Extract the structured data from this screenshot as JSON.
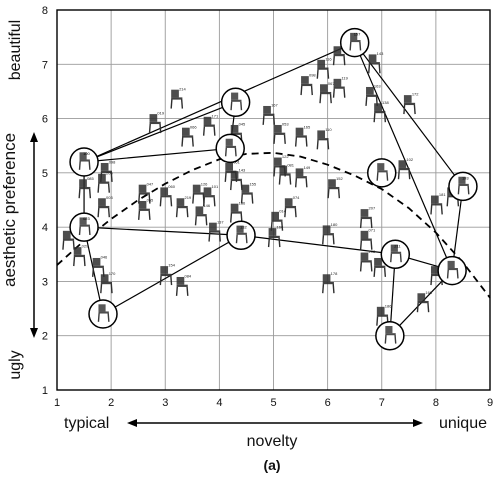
{
  "chart_data": {
    "type": "scatter",
    "title": "",
    "xlabel": "novelty",
    "ylabel": "aesthetic preference",
    "caption": "(a)",
    "x_low_label": "typical",
    "x_high_label": "unique",
    "y_low_label": "ugly",
    "y_high_label": "beautiful",
    "xlim": [
      1,
      9
    ],
    "ylim": [
      1,
      8
    ],
    "xticks": [
      "1",
      "2",
      "3",
      "4",
      "5",
      "6",
      "7",
      "8",
      "9"
    ],
    "yticks": [
      "1",
      "2",
      "3",
      "4",
      "5",
      "6",
      "7",
      "8"
    ],
    "grid": true,
    "legend": "none",
    "colors": {
      "grid": "#9a9a9a",
      "frame": "#000000",
      "hull": "#000000",
      "curve": "#000000",
      "chair": "#2e2e2e",
      "highlight": "#ffffff"
    },
    "highlighted_points": [
      {
        "id": "100",
        "x": 1.5,
        "y": 5.2
      },
      {
        "id": "023",
        "x": 1.5,
        "y": 4.0
      },
      {
        "id": "",
        "x": 1.85,
        "y": 2.4
      },
      {
        "id": "",
        "x": 4.3,
        "y": 6.3
      },
      {
        "id": "",
        "x": 4.2,
        "y": 5.45
      },
      {
        "id": "132",
        "x": 4.4,
        "y": 3.85
      },
      {
        "id": "157",
        "x": 6.5,
        "y": 7.4
      },
      {
        "id": "",
        "x": 7.0,
        "y": 5.0
      },
      {
        "id": "193",
        "x": 8.5,
        "y": 4.75
      },
      {
        "id": "211",
        "x": 7.25,
        "y": 3.5
      },
      {
        "id": "",
        "x": 8.3,
        "y": 3.2
      },
      {
        "id": "",
        "x": 7.15,
        "y": 2.0
      }
    ],
    "outer_hull_order": [
      "100",
      "",
      "157",
      "193",
      "",
      "",
      "",
      "023"
    ],
    "connections": [
      [
        "100",
        "157"
      ],
      [
        "157",
        "193"
      ],
      [
        "193",
        "_8.3"
      ],
      [
        "_8.3",
        "_7.15"
      ],
      [
        "_7.15",
        "211"
      ],
      [
        "211",
        "132"
      ],
      [
        "132",
        "_1.85"
      ],
      [
        "_1.85",
        "023"
      ],
      [
        "023",
        "100"
      ],
      [
        "100",
        "_4.3"
      ],
      [
        "_4.3",
        "_4.2"
      ],
      [
        "_4.2",
        "100"
      ],
      [
        "_4.2",
        "_7.0"
      ],
      [
        "_7.0",
        "193"
      ],
      [
        "_7.0",
        "_8.3"
      ],
      [
        "023",
        "132"
      ],
      [
        "211",
        "_8.3"
      ],
      [
        "157",
        "_8.3"
      ]
    ],
    "fit_curve": {
      "style": "dashed",
      "points": [
        [
          1.0,
          3.3
        ],
        [
          1.5,
          3.75
        ],
        [
          2.0,
          4.15
        ],
        [
          2.5,
          4.5
        ],
        [
          3.0,
          4.8
        ],
        [
          3.5,
          5.05
        ],
        [
          4.0,
          5.25
        ],
        [
          4.5,
          5.35
        ],
        [
          5.0,
          5.37
        ],
        [
          5.5,
          5.3
        ],
        [
          6.0,
          5.15
        ],
        [
          6.5,
          4.95
        ],
        [
          7.0,
          4.7
        ],
        [
          7.5,
          4.35
        ],
        [
          8.0,
          3.9
        ],
        [
          8.5,
          3.35
        ],
        [
          9.0,
          2.7
        ]
      ]
    },
    "points": [
      {
        "id": "108",
        "x": 6.2,
        "y": 7.1
      },
      {
        "id": "116",
        "x": 5.9,
        "y": 6.85
      },
      {
        "id": "143",
        "x": 6.85,
        "y": 6.95
      },
      {
        "id": "098",
        "x": 5.6,
        "y": 6.55
      },
      {
        "id": "067",
        "x": 5.95,
        "y": 6.4
      },
      {
        "id": "119",
        "x": 6.2,
        "y": 6.5
      },
      {
        "id": "214",
        "x": 3.2,
        "y": 6.3
      },
      {
        "id": "163",
        "x": 6.8,
        "y": 6.35
      },
      {
        "id": "172",
        "x": 7.5,
        "y": 6.2
      },
      {
        "id": "167",
        "x": 4.9,
        "y": 6.0
      },
      {
        "id": "138",
        "x": 6.95,
        "y": 6.05
      },
      {
        "id": "019",
        "x": 2.8,
        "y": 5.85
      },
      {
        "id": "171",
        "x": 3.8,
        "y": 5.8
      },
      {
        "id": "045",
        "x": 4.3,
        "y": 5.65
      },
      {
        "id": "053",
        "x": 5.1,
        "y": 5.65
      },
      {
        "id": "066",
        "x": 3.4,
        "y": 5.6
      },
      {
        "id": "165",
        "x": 5.5,
        "y": 5.6
      },
      {
        "id": "110",
        "x": 5.9,
        "y": 5.55
      },
      {
        "id": "098b",
        "x": 1.9,
        "y": 4.95
      },
      {
        "id": "205",
        "x": 1.85,
        "y": 4.75
      },
      {
        "id": "085",
        "x": 1.5,
        "y": 4.65
      },
      {
        "id": "122",
        "x": 5.1,
        "y": 5.05
      },
      {
        "id": "061",
        "x": 4.2,
        "y": 4.95
      },
      {
        "id": "081",
        "x": 5.2,
        "y": 4.9
      },
      {
        "id": "143b",
        "x": 4.3,
        "y": 4.8
      },
      {
        "id": "102",
        "x": 7.4,
        "y": 5.0
      },
      {
        "id": "149",
        "x": 5.5,
        "y": 4.85
      },
      {
        "id": "152",
        "x": 6.1,
        "y": 4.65
      },
      {
        "id": "047",
        "x": 2.6,
        "y": 4.55
      },
      {
        "id": "060",
        "x": 3.0,
        "y": 4.5
      },
      {
        "id": "126",
        "x": 3.6,
        "y": 4.55
      },
      {
        "id": "101",
        "x": 3.8,
        "y": 4.5
      },
      {
        "id": "155",
        "x": 4.5,
        "y": 4.55
      },
      {
        "id": "219",
        "x": 3.3,
        "y": 4.3
      },
      {
        "id": "003",
        "x": 1.85,
        "y": 4.3
      },
      {
        "id": "055",
        "x": 2.6,
        "y": 4.25
      },
      {
        "id": "146",
        "x": 3.65,
        "y": 4.15
      },
      {
        "id": "136",
        "x": 4.3,
        "y": 4.2
      },
      {
        "id": "074",
        "x": 5.3,
        "y": 4.3
      },
      {
        "id": "014",
        "x": 5.05,
        "y": 4.05
      },
      {
        "id": "207",
        "x": 6.7,
        "y": 4.1
      },
      {
        "id": "181",
        "x": 8.0,
        "y": 4.35
      },
      {
        "id": "194",
        "x": 8.3,
        "y": 4.5
      },
      {
        "id": "137",
        "x": 3.9,
        "y": 3.85
      },
      {
        "id": "160",
        "x": 5.0,
        "y": 3.75
      },
      {
        "id": "180",
        "x": 6.0,
        "y": 3.8
      },
      {
        "id": "071",
        "x": 6.7,
        "y": 3.7
      },
      {
        "id": "125",
        "x": 1.2,
        "y": 3.7
      },
      {
        "id": "029",
        "x": 1.4,
        "y": 3.4
      },
      {
        "id": "046",
        "x": 1.75,
        "y": 3.2
      },
      {
        "id": "170",
        "x": 1.9,
        "y": 2.9
      },
      {
        "id": "208",
        "x": 6.7,
        "y": 3.3
      },
      {
        "id": "209",
        "x": 6.95,
        "y": 3.2
      },
      {
        "id": "178",
        "x": 6.0,
        "y": 2.9
      },
      {
        "id": "084",
        "x": 3.3,
        "y": 2.85
      },
      {
        "id": "154",
        "x": 3.0,
        "y": 3.05
      },
      {
        "id": "184",
        "x": 8.0,
        "y": 3.05
      },
      {
        "id": "168",
        "x": 7.75,
        "y": 2.55
      },
      {
        "id": "186",
        "x": 7.0,
        "y": 2.3
      }
    ]
  }
}
